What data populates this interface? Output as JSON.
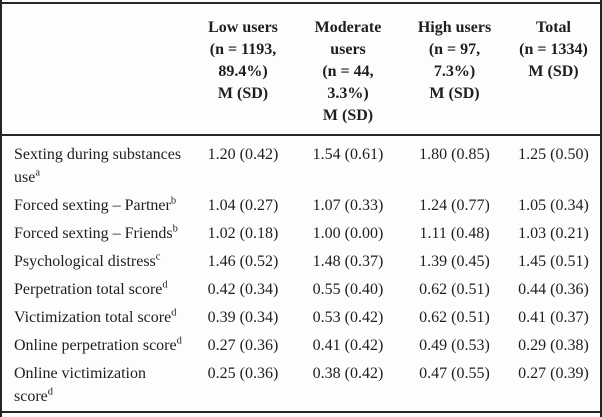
{
  "table": {
    "header": {
      "label": "",
      "low": "Low users\n(n = 1193,\n89.4%)\nM (SD)",
      "moderate": "Moderate\nusers\n(n = 44,\n3.3%)\nM (SD)",
      "high": "High users\n(n = 97,\n7.3%)\nM (SD)",
      "total": "Total\n(n = 1334)\nM (SD)"
    },
    "rows": [
      {
        "label": "Sexting during substances use",
        "sup": "a",
        "values": [
          "1.20 (0.42)",
          "1.54 (0.61)",
          "1.80 (0.85)",
          "1.25 (0.50)"
        ]
      },
      {
        "label": "Forced sexting – Partner",
        "sup": "b",
        "values": [
          "1.04 (0.27)",
          "1.07 (0.33)",
          "1.24 (0.77)",
          "1.05 (0.34)"
        ]
      },
      {
        "label": "Forced sexting – Friends",
        "sup": "b",
        "values": [
          "1.02 (0.18)",
          "1.00 (0.00)",
          "1.11 (0.48)",
          "1.03 (0.21)"
        ]
      },
      {
        "label": "Psychological distress",
        "sup": "c",
        "values": [
          "1.46 (0.52)",
          "1.48 (0.37)",
          "1.39 (0.45)",
          "1.45 (0.51)"
        ]
      },
      {
        "label": "Perpetration total score",
        "sup": "d",
        "values": [
          "0.42 (0.34)",
          "0.55 (0.40)",
          "0.62 (0.51)",
          "0.44 (0.36)"
        ]
      },
      {
        "label": "Victimization total score",
        "sup": "d",
        "values": [
          "0.39 (0.34)",
          "0.53 (0.42)",
          "0.62 (0.51)",
          "0.41 (0.37)"
        ]
      },
      {
        "label": "Online perpetration score",
        "sup": "d",
        "values": [
          "0.27 (0.36)",
          "0.41 (0.42)",
          "0.49 (0.53)",
          "0.29 (0.38)"
        ]
      },
      {
        "label": "Online victimization score",
        "sup": "d",
        "values": [
          "0.25 (0.36)",
          "0.38 (0.42)",
          "0.47 (0.55)",
          "0.27 (0.39)"
        ]
      }
    ]
  }
}
